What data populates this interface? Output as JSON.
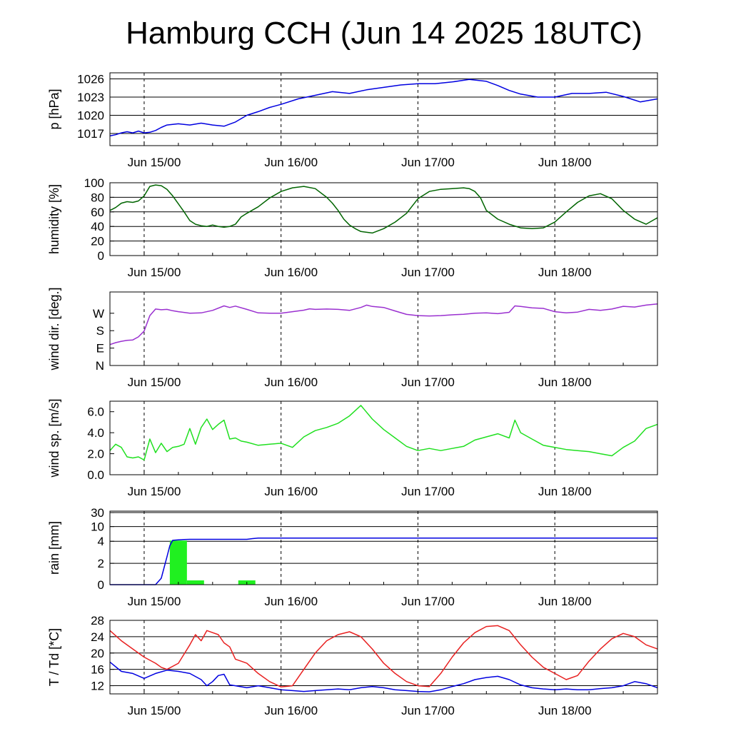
{
  "title": "Hamburg CCH (Jun 14 2025 18UTC)",
  "x_tick_labels": [
    "Jun 15/00",
    "Jun 16/00",
    "Jun 17/00",
    "Jun 18/00"
  ],
  "x_range_hours": [
    0,
    96
  ],
  "chart_data": [
    {
      "type": "line",
      "ylabel": "p [hPa]",
      "ylim": [
        1015,
        1027
      ],
      "yticks": [
        1017,
        1020,
        1023,
        1026
      ],
      "ytick_labels": [
        "1017",
        "1020",
        "1023",
        "1026"
      ],
      "grid": true,
      "series": [
        {
          "color": "#0000e0",
          "x": [
            0,
            1,
            2,
            3,
            4,
            5,
            6,
            7,
            8,
            9,
            10,
            12,
            14,
            16,
            18,
            20,
            22,
            24,
            26,
            28,
            30,
            33,
            36,
            39,
            42,
            45,
            48,
            51,
            54,
            57,
            60,
            63,
            66,
            68,
            70,
            72,
            75,
            78,
            81,
            84,
            87,
            90,
            93,
            96
          ],
          "y": [
            1016.6,
            1016.8,
            1017.1,
            1017.3,
            1017.1,
            1017.4,
            1017.1,
            1017.2,
            1017.5,
            1018.0,
            1018.4,
            1018.6,
            1018.4,
            1018.7,
            1018.4,
            1018.2,
            1018.9,
            1020.0,
            1020.6,
            1021.3,
            1021.8,
            1022.7,
            1023.3,
            1023.9,
            1023.6,
            1024.2,
            1024.6,
            1025.0,
            1025.2,
            1025.2,
            1025.5,
            1025.9,
            1025.6,
            1024.9,
            1024.1,
            1023.5,
            1023.0,
            1023.0,
            1023.6,
            1023.6,
            1023.8,
            1023.1,
            1022.2,
            1022.7
          ]
        }
      ]
    },
    {
      "type": "line",
      "ylabel": "humidity [%]",
      "ylim": [
        0,
        100
      ],
      "yticks": [
        0,
        20,
        40,
        60,
        80,
        100
      ],
      "ytick_labels": [
        "0",
        "20",
        "40",
        "60",
        "80",
        "100"
      ],
      "grid": true,
      "series": [
        {
          "color": "#006400",
          "x": [
            0,
            1,
            2,
            3,
            4,
            5,
            6,
            7,
            8,
            9,
            10,
            11,
            12,
            13,
            14,
            15,
            16,
            17,
            18,
            19,
            20,
            21,
            22,
            23,
            24,
            26,
            28,
            30,
            32,
            34,
            36,
            38,
            39,
            40,
            41,
            42,
            43,
            44,
            46,
            48,
            50,
            52,
            54,
            56,
            58,
            60,
            62,
            63,
            64,
            65,
            66,
            68,
            70,
            72,
            74,
            76,
            78,
            80,
            82,
            84,
            86,
            88,
            90,
            92,
            94,
            96
          ],
          "y": [
            62,
            66,
            72,
            74,
            73,
            75,
            82,
            95,
            97,
            96,
            91,
            82,
            71,
            60,
            48,
            43,
            41,
            40,
            42,
            40,
            39,
            40,
            43,
            53,
            58,
            67,
            79,
            88,
            93,
            95,
            92,
            80,
            72,
            62,
            50,
            42,
            37,
            33,
            31,
            37,
            46,
            58,
            78,
            88,
            91,
            92,
            93,
            92,
            88,
            79,
            62,
            50,
            43,
            38,
            37,
            38,
            46,
            60,
            73,
            82,
            85,
            78,
            62,
            50,
            43,
            52
          ]
        }
      ]
    },
    {
      "type": "line",
      "ylabel": "wind dir. [deg.]",
      "ylim": [
        0,
        380
      ],
      "yticks": [
        0,
        90,
        180,
        270
      ],
      "ytick_labels": [
        "N",
        "E",
        "S",
        "W"
      ],
      "grid": false,
      "series": [
        {
          "color": "#9a30d0",
          "x": [
            0,
            1,
            2,
            3,
            4,
            5,
            6,
            7,
            8,
            9,
            10,
            11,
            12,
            14,
            16,
            18,
            20,
            21,
            22,
            24,
            26,
            28,
            30,
            32,
            34,
            35,
            36,
            38,
            40,
            42,
            44,
            45,
            46,
            48,
            50,
            52,
            54,
            56,
            58,
            60,
            62,
            64,
            66,
            68,
            70,
            71,
            72,
            74,
            76,
            78,
            80,
            82,
            84,
            86,
            88,
            90,
            92,
            94,
            96
          ],
          "y": [
            108,
            118,
            125,
            130,
            132,
            148,
            178,
            258,
            292,
            288,
            290,
            283,
            278,
            270,
            272,
            285,
            308,
            300,
            307,
            290,
            272,
            270,
            270,
            278,
            286,
            293,
            290,
            292,
            290,
            285,
            300,
            312,
            305,
            300,
            282,
            264,
            258,
            256,
            258,
            262,
            265,
            270,
            272,
            268,
            275,
            308,
            305,
            298,
            295,
            278,
            272,
            276,
            290,
            285,
            292,
            306,
            302,
            312,
            318
          ]
        }
      ]
    },
    {
      "type": "line",
      "ylabel": "wind sp. [m/s]",
      "ylim": [
        0,
        7
      ],
      "yticks": [
        0,
        2,
        4,
        6
      ],
      "ytick_labels": [
        "0.0",
        "2.0",
        "4.0",
        "6.0"
      ],
      "grid": false,
      "series": [
        {
          "color": "#20e020",
          "x": [
            0,
            1,
            2,
            3,
            4,
            5,
            6,
            7,
            8,
            9,
            10,
            11,
            12,
            13,
            14,
            15,
            16,
            17,
            18,
            19,
            20,
            21,
            22,
            23,
            24,
            26,
            28,
            30,
            32,
            34,
            36,
            38,
            40,
            42,
            44,
            46,
            48,
            50,
            52,
            54,
            56,
            58,
            60,
            62,
            64,
            66,
            68,
            70,
            71,
            72,
            74,
            76,
            78,
            80,
            82,
            84,
            86,
            88,
            90,
            92,
            94,
            96
          ],
          "y": [
            2.3,
            2.9,
            2.6,
            1.7,
            1.6,
            1.7,
            1.4,
            3.4,
            2.1,
            3.0,
            2.2,
            2.6,
            2.7,
            2.9,
            4.4,
            2.9,
            4.5,
            5.3,
            4.3,
            4.8,
            5.2,
            3.4,
            3.5,
            3.2,
            3.1,
            2.8,
            2.9,
            3.0,
            2.6,
            3.6,
            4.2,
            4.5,
            4.9,
            5.6,
            6.6,
            5.3,
            4.3,
            3.5,
            2.7,
            2.3,
            2.5,
            2.3,
            2.5,
            2.7,
            3.3,
            3.6,
            3.9,
            3.5,
            5.2,
            4.0,
            3.4,
            2.8,
            2.6,
            2.4,
            2.3,
            2.2,
            2.0,
            1.8,
            2.6,
            3.2,
            4.4,
            4.8
          ]
        }
      ]
    },
    {
      "type": "bar",
      "ylabel": "rain [mm]",
      "ylim": [
        0,
        30
      ],
      "yticks": [
        0,
        2,
        4,
        10,
        30
      ],
      "ytick_labels": [
        "0",
        "2",
        "4",
        "10",
        "30"
      ],
      "grid": true,
      "scale": "nonlinear",
      "bars": {
        "color": "#20f020",
        "hours": [
          [
            10.5,
            13.5
          ],
          [
            13.5,
            16.5
          ],
          [
            22.5,
            25.5
          ]
        ],
        "values": [
          4.3,
          0.4,
          0.4
        ]
      },
      "series": [
        {
          "color": "#0000e0",
          "name_hint": "accumulated",
          "x": [
            0,
            8,
            9,
            10,
            10.5,
            11,
            12,
            13,
            14,
            24,
            25,
            26,
            96
          ],
          "y": [
            0,
            0,
            0.6,
            2.6,
            3.6,
            4.4,
            4.6,
            4.7,
            4.8,
            4.8,
            5.1,
            5.3,
            5.3
          ]
        }
      ]
    },
    {
      "type": "line",
      "ylabel": "T / Td [*C]",
      "ylim": [
        10,
        28
      ],
      "yticks": [
        12,
        16,
        20,
        24,
        28
      ],
      "ytick_labels": [
        "12",
        "16",
        "20",
        "24",
        "28"
      ],
      "grid": true,
      "series": [
        {
          "color": "#e82020",
          "x": [
            0,
            2,
            4,
            6,
            8,
            9,
            10,
            12,
            14,
            15,
            16,
            17,
            18,
            19,
            20,
            21,
            22,
            23,
            24,
            26,
            28,
            30,
            32,
            34,
            36,
            38,
            40,
            42,
            44,
            46,
            48,
            50,
            52,
            54,
            56,
            58,
            60,
            62,
            64,
            66,
            68,
            70,
            72,
            74,
            76,
            78,
            80,
            82,
            84,
            86,
            88,
            90,
            92,
            94,
            96
          ],
          "y": [
            25.5,
            23.0,
            21.0,
            19.0,
            17.5,
            16.5,
            16.0,
            17.5,
            22.0,
            24.5,
            23.0,
            25.5,
            25.0,
            24.5,
            22.5,
            21.5,
            18.5,
            18.0,
            17.5,
            15.0,
            13.0,
            11.7,
            12.0,
            16.0,
            20.0,
            23.0,
            24.5,
            25.2,
            24.0,
            21.0,
            17.5,
            15.0,
            13.0,
            12.0,
            11.8,
            15.0,
            19.0,
            22.5,
            25.0,
            26.5,
            26.7,
            25.5,
            22.0,
            19.0,
            16.5,
            15.0,
            13.5,
            14.5,
            18.0,
            21.0,
            23.5,
            24.8,
            24.0,
            22.0,
            21.0
          ]
        },
        {
          "color": "#0000e0",
          "x": [
            0,
            2,
            4,
            6,
            8,
            10,
            12,
            14,
            16,
            17,
            18,
            19,
            20,
            21,
            22,
            24,
            26,
            28,
            30,
            32,
            34,
            36,
            38,
            40,
            42,
            44,
            46,
            48,
            50,
            52,
            54,
            56,
            58,
            60,
            62,
            64,
            66,
            68,
            70,
            72,
            74,
            76,
            78,
            80,
            82,
            84,
            86,
            88,
            90,
            92,
            94,
            96
          ],
          "y": [
            17.8,
            15.5,
            15.0,
            13.8,
            15.0,
            15.8,
            15.5,
            15.0,
            13.5,
            12.0,
            13.0,
            14.5,
            14.8,
            12.2,
            12.0,
            11.5,
            12.0,
            11.5,
            11.0,
            10.8,
            10.6,
            10.8,
            11.0,
            11.2,
            11.0,
            11.5,
            11.8,
            11.5,
            11.0,
            10.8,
            10.6,
            10.5,
            11.0,
            11.8,
            12.5,
            13.5,
            14.0,
            14.3,
            13.5,
            12.2,
            11.5,
            11.2,
            11.0,
            11.2,
            11.0,
            11.0,
            11.3,
            11.5,
            12.0,
            13.0,
            12.5,
            11.5
          ]
        }
      ]
    }
  ]
}
